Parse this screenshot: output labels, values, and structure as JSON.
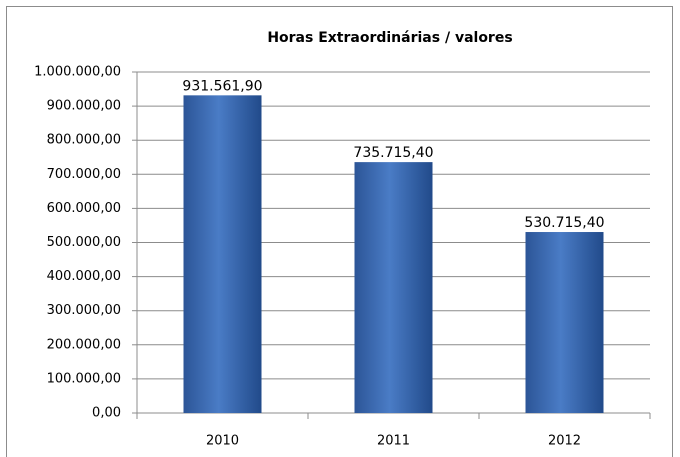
{
  "chart_data": {
    "type": "bar",
    "title": "Horas Extraordinárias / valores",
    "categories": [
      "2010",
      "2011",
      "2012"
    ],
    "values": [
      931561.9,
      735715.4,
      530715.4
    ],
    "value_labels": [
      "931.561,90",
      "735.715,40",
      "530.715,40"
    ],
    "color": "#3a6db5",
    "ylim": [
      0,
      1000000
    ],
    "yticks": [
      {
        "value": 0,
        "label": "0,00"
      },
      {
        "value": 100000,
        "label": "100.000,00"
      },
      {
        "value": 200000,
        "label": "200.000,00"
      },
      {
        "value": 300000,
        "label": "300.000,00"
      },
      {
        "value": 400000,
        "label": "400.000,00"
      },
      {
        "value": 500000,
        "label": "500.000,00"
      },
      {
        "value": 600000,
        "label": "600.000,00"
      },
      {
        "value": 700000,
        "label": "700.000,00"
      },
      {
        "value": 800000,
        "label": "800.000,00"
      },
      {
        "value": 900000,
        "label": "900.000,00"
      },
      {
        "value": 1000000,
        "label": "1.000.000,00"
      }
    ],
    "grid": true
  }
}
